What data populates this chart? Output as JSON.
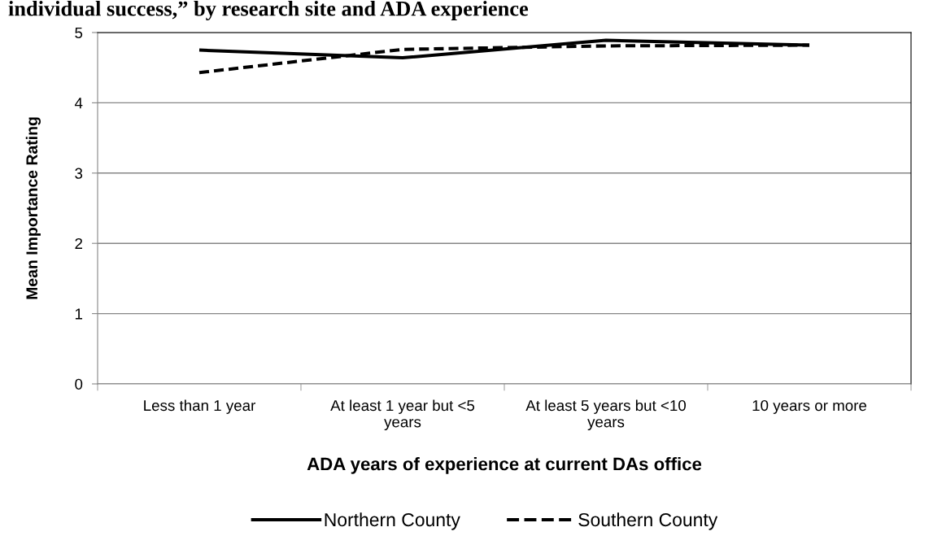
{
  "chart_data": {
    "type": "line",
    "title": "individual success,” by research site and ADA experience",
    "xlabel": "ADA years of experience at current DAs office",
    "ylabel": "Mean Importance Rating",
    "categories": [
      "Less than 1 year",
      "At least 1 year but <5 years",
      "At least 5 years but <10 years",
      "10 years or more"
    ],
    "series": [
      {
        "name": "Northern County",
        "color": "#000000",
        "line_style": "solid",
        "values": [
          4.75,
          4.64,
          4.89,
          4.82
        ]
      },
      {
        "name": "Southern County",
        "color": "#000000",
        "line_style": "dashed",
        "values": [
          4.43,
          4.76,
          4.81,
          4.82
        ]
      }
    ],
    "ylim": [
      0,
      5
    ],
    "yticks": [
      0,
      1,
      2,
      3,
      4,
      5
    ],
    "grid": "y",
    "legend": "bottom"
  }
}
